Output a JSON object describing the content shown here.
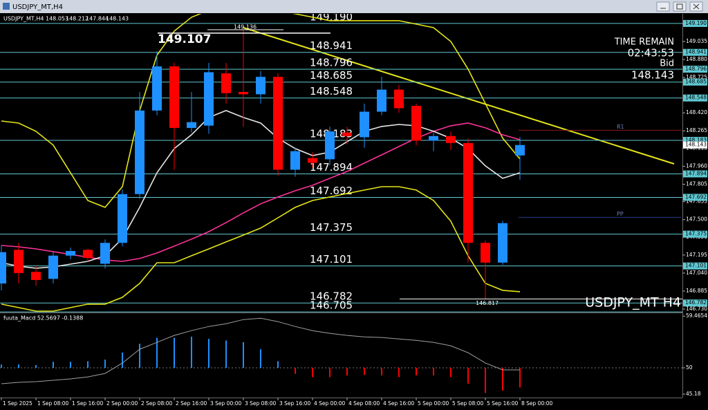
{
  "window_title": "USDJPY_MT,H4",
  "chart_data": [
    {
      "type": "candlestick",
      "title": "USDJPY_MT,H4",
      "categories": [
        "1 Sep 2025",
        null,
        "1 Sep 08:00",
        null,
        "1 Sep 16:00",
        null,
        "2 Sep 00:00",
        null,
        "2 Sep 08:00",
        null,
        "2 Sep 16:00",
        null,
        "3 Sep 00:00",
        null,
        "3 Sep 08:00",
        null,
        "3 Sep 16:00",
        null,
        "4 Sep 00:00",
        null,
        "4 Sep 08:00",
        null,
        "4 Sep 16:00",
        null,
        "5 Sep 00:00",
        null,
        "5 Sep 08:00",
        null,
        "5 Sep 16:00",
        null,
        "8 Sep 00:00"
      ],
      "open": [
        146.95,
        147.24,
        147.05,
        146.99,
        147.19,
        147.24,
        147.12,
        147.3,
        147.72,
        148.44,
        148.82,
        148.29,
        148.31,
        148.76,
        148.6,
        148.58,
        148.73,
        147.93,
        148.03,
        148.02,
        148.25,
        148.21,
        148.43,
        148.62,
        148.48,
        148.18,
        148.22,
        148.16,
        147.3,
        147.13,
        148.053
      ],
      "high": [
        147.28,
        147.3,
        147.1,
        147.22,
        147.26,
        147.25,
        147.33,
        147.76,
        148.6,
        148.95,
        148.85,
        148.6,
        148.85,
        148.85,
        149.136,
        148.78,
        148.76,
        148.12,
        148.08,
        148.3,
        148.3,
        148.5,
        148.73,
        148.66,
        148.5,
        148.25,
        148.26,
        148.2,
        147.32,
        147.49,
        148.212
      ],
      "low": [
        146.89,
        146.95,
        146.93,
        146.95,
        147.16,
        147.14,
        147.08,
        147.27,
        147.68,
        148.4,
        147.93,
        148.25,
        148.24,
        148.5,
        148.3,
        148.5,
        147.88,
        147.87,
        147.95,
        147.97,
        148.15,
        148.12,
        148.4,
        148.42,
        148.14,
        148.09,
        148.1,
        147.13,
        146.817,
        147.11,
        147.844
      ],
      "close": [
        147.22,
        147.04,
        146.98,
        147.19,
        147.23,
        147.17,
        147.3,
        147.72,
        148.44,
        148.82,
        148.29,
        148.34,
        148.77,
        148.59,
        148.58,
        148.73,
        147.93,
        148.09,
        147.99,
        148.26,
        148.22,
        148.43,
        148.62,
        148.46,
        148.18,
        148.22,
        148.16,
        147.3,
        147.13,
        147.47,
        148.143
      ],
      "up_color": "#1e90ff",
      "down_color": "#ff0000",
      "series": [
        {
          "color": "#e6e619",
          "values": [
            148.35,
            148.332,
            148.261,
            148.142,
            147.904,
            147.665,
            147.606,
            147.784,
            148.44,
            148.916,
            149.124,
            149.244,
            149.303,
            149.333,
            149.333,
            149.333,
            149.303,
            149.273,
            149.244,
            149.214,
            149.214,
            149.214,
            149.214,
            149.214,
            149.184,
            149.154,
            149.035,
            148.797,
            148.5,
            148.202,
            148.023
          ]
        },
        {
          "color": "#e6e619",
          "values": [
            146.772,
            146.742,
            146.712,
            146.712,
            146.742,
            146.772,
            146.772,
            146.831,
            146.951,
            147.129,
            147.129,
            147.189,
            147.248,
            147.308,
            147.367,
            147.427,
            147.516,
            147.606,
            147.665,
            147.695,
            147.725,
            147.755,
            147.784,
            147.784,
            147.755,
            147.665,
            147.487,
            147.189,
            146.951,
            146.891,
            146.879
          ]
        },
        {
          "color": "#ff3399",
          "values": [
            147.278,
            147.266,
            147.248,
            147.225,
            147.201,
            147.177,
            147.153,
            147.141,
            147.165,
            147.213,
            147.272,
            147.332,
            147.397,
            147.475,
            147.558,
            147.636,
            147.695,
            147.749,
            147.796,
            147.856,
            147.915,
            147.987,
            148.058,
            148.13,
            148.201,
            148.261,
            148.309,
            148.332,
            148.291,
            148.231,
            148.189
          ]
        },
        {
          "color": "#e8e8e8",
          "values": [
            147.129,
            147.099,
            147.082,
            147.093,
            147.117,
            147.141,
            147.189,
            147.338,
            147.606,
            147.904,
            148.112,
            148.231,
            148.38,
            148.44,
            148.38,
            148.332,
            148.201,
            148.112,
            148.052,
            148.082,
            148.172,
            148.261,
            148.303,
            148.32,
            148.309,
            148.261,
            148.201,
            148.112,
            147.963,
            147.856,
            147.904
          ]
        }
      ],
      "ylim": [
        146.7,
        149.273
      ],
      "yticks": [
        {
          "value": 149.19,
          "label": "149.190"
        },
        149.035,
        {
          "value": 148.88,
          "label": "148.880"
        },
        148.725,
        {
          "value": 148.42,
          "label": "148.420"
        },
        148.265,
        148.115,
        {
          "value": 147.96,
          "label": "147.960"
        },
        147.805,
        147.655,
        {
          "value": 147.5,
          "label": "147.500"
        },
        {
          "value": 147.35,
          "label": "147.350"
        },
        147.195,
        {
          "value": 147.04,
          "label": "147.040"
        },
        146.885,
        {
          "value": 146.73,
          "label": "146.730"
        }
      ],
      "levels": [
        {
          "value": 149.19,
          "label": "149.190",
          "boxed": true
        },
        {
          "value": 148.941,
          "boxed": true
        },
        {
          "value": 148.796,
          "boxed": true
        },
        {
          "value": 148.685,
          "boxed": true
        },
        {
          "value": 148.548,
          "boxed": true
        },
        {
          "value": 148.183,
          "boxed": true
        },
        {
          "value": 147.894,
          "boxed": true
        },
        {
          "value": 147.692,
          "boxed": true
        },
        {
          "value": 147.375,
          "boxed": true
        },
        {
          "value": 147.101,
          "boxed": true
        },
        {
          "value": 146.782,
          "boxed": true
        },
        {
          "value": 146.705,
          "boxed": false
        }
      ],
      "level_color": "#5fc9d3",
      "annotations": [
        {
          "value": 149.107,
          "style": "bold"
        },
        {
          "value": 149.136,
          "style": "small"
        },
        {
          "value": 146.817,
          "style": "small"
        },
        {
          "value": 148.27,
          "label": "R1",
          "style": "pivot",
          "color": "#8b1a1a"
        },
        {
          "value": 147.52,
          "label": "PP",
          "style": "pivot",
          "color": "#2a3a8a"
        }
      ],
      "time_remain_label": "TIME REMAIN",
      "time_remain": "02:43:53",
      "bid_label": "Bid",
      "symbol_label": "USDJPY_MT H4"
    },
    {
      "type": "bar",
      "title": "fuuta_Macd 52.5697 -0.1388",
      "baseline": 50,
      "values": [
        50.6,
        50.6,
        50.5,
        51.1,
        51.1,
        51.2,
        51.5,
        52.8,
        54.4,
        55.5,
        55.5,
        55.7,
        55.3,
        55.0,
        54.7,
        53.4,
        51.2,
        48.9,
        48.3,
        48.3,
        48.6,
        48.7,
        48.6,
        48.3,
        48.6,
        48.6,
        48.3,
        47.1,
        45.4,
        45.8,
        46.4
      ],
      "up_color": "#1e90ff",
      "down_color": "#ff0000",
      "series": [
        {
          "color": "#a0a0a0",
          "values": [
            47.08,
            47.33,
            47.46,
            47.71,
            47.97,
            48.34,
            48.97,
            50.87,
            53.4,
            54.66,
            55.93,
            56.81,
            57.57,
            58.07,
            58.83,
            59.09,
            58.45,
            57.57,
            56.81,
            56.31,
            55.93,
            55.67,
            55.55,
            55.29,
            55.04,
            54.66,
            54.03,
            52.77,
            50.87,
            49.61,
            49.61
          ]
        }
      ],
      "ylim": [
        44.55,
        60.0
      ],
      "yticks": [
        59.4654,
        50,
        45.18
      ]
    }
  ]
}
